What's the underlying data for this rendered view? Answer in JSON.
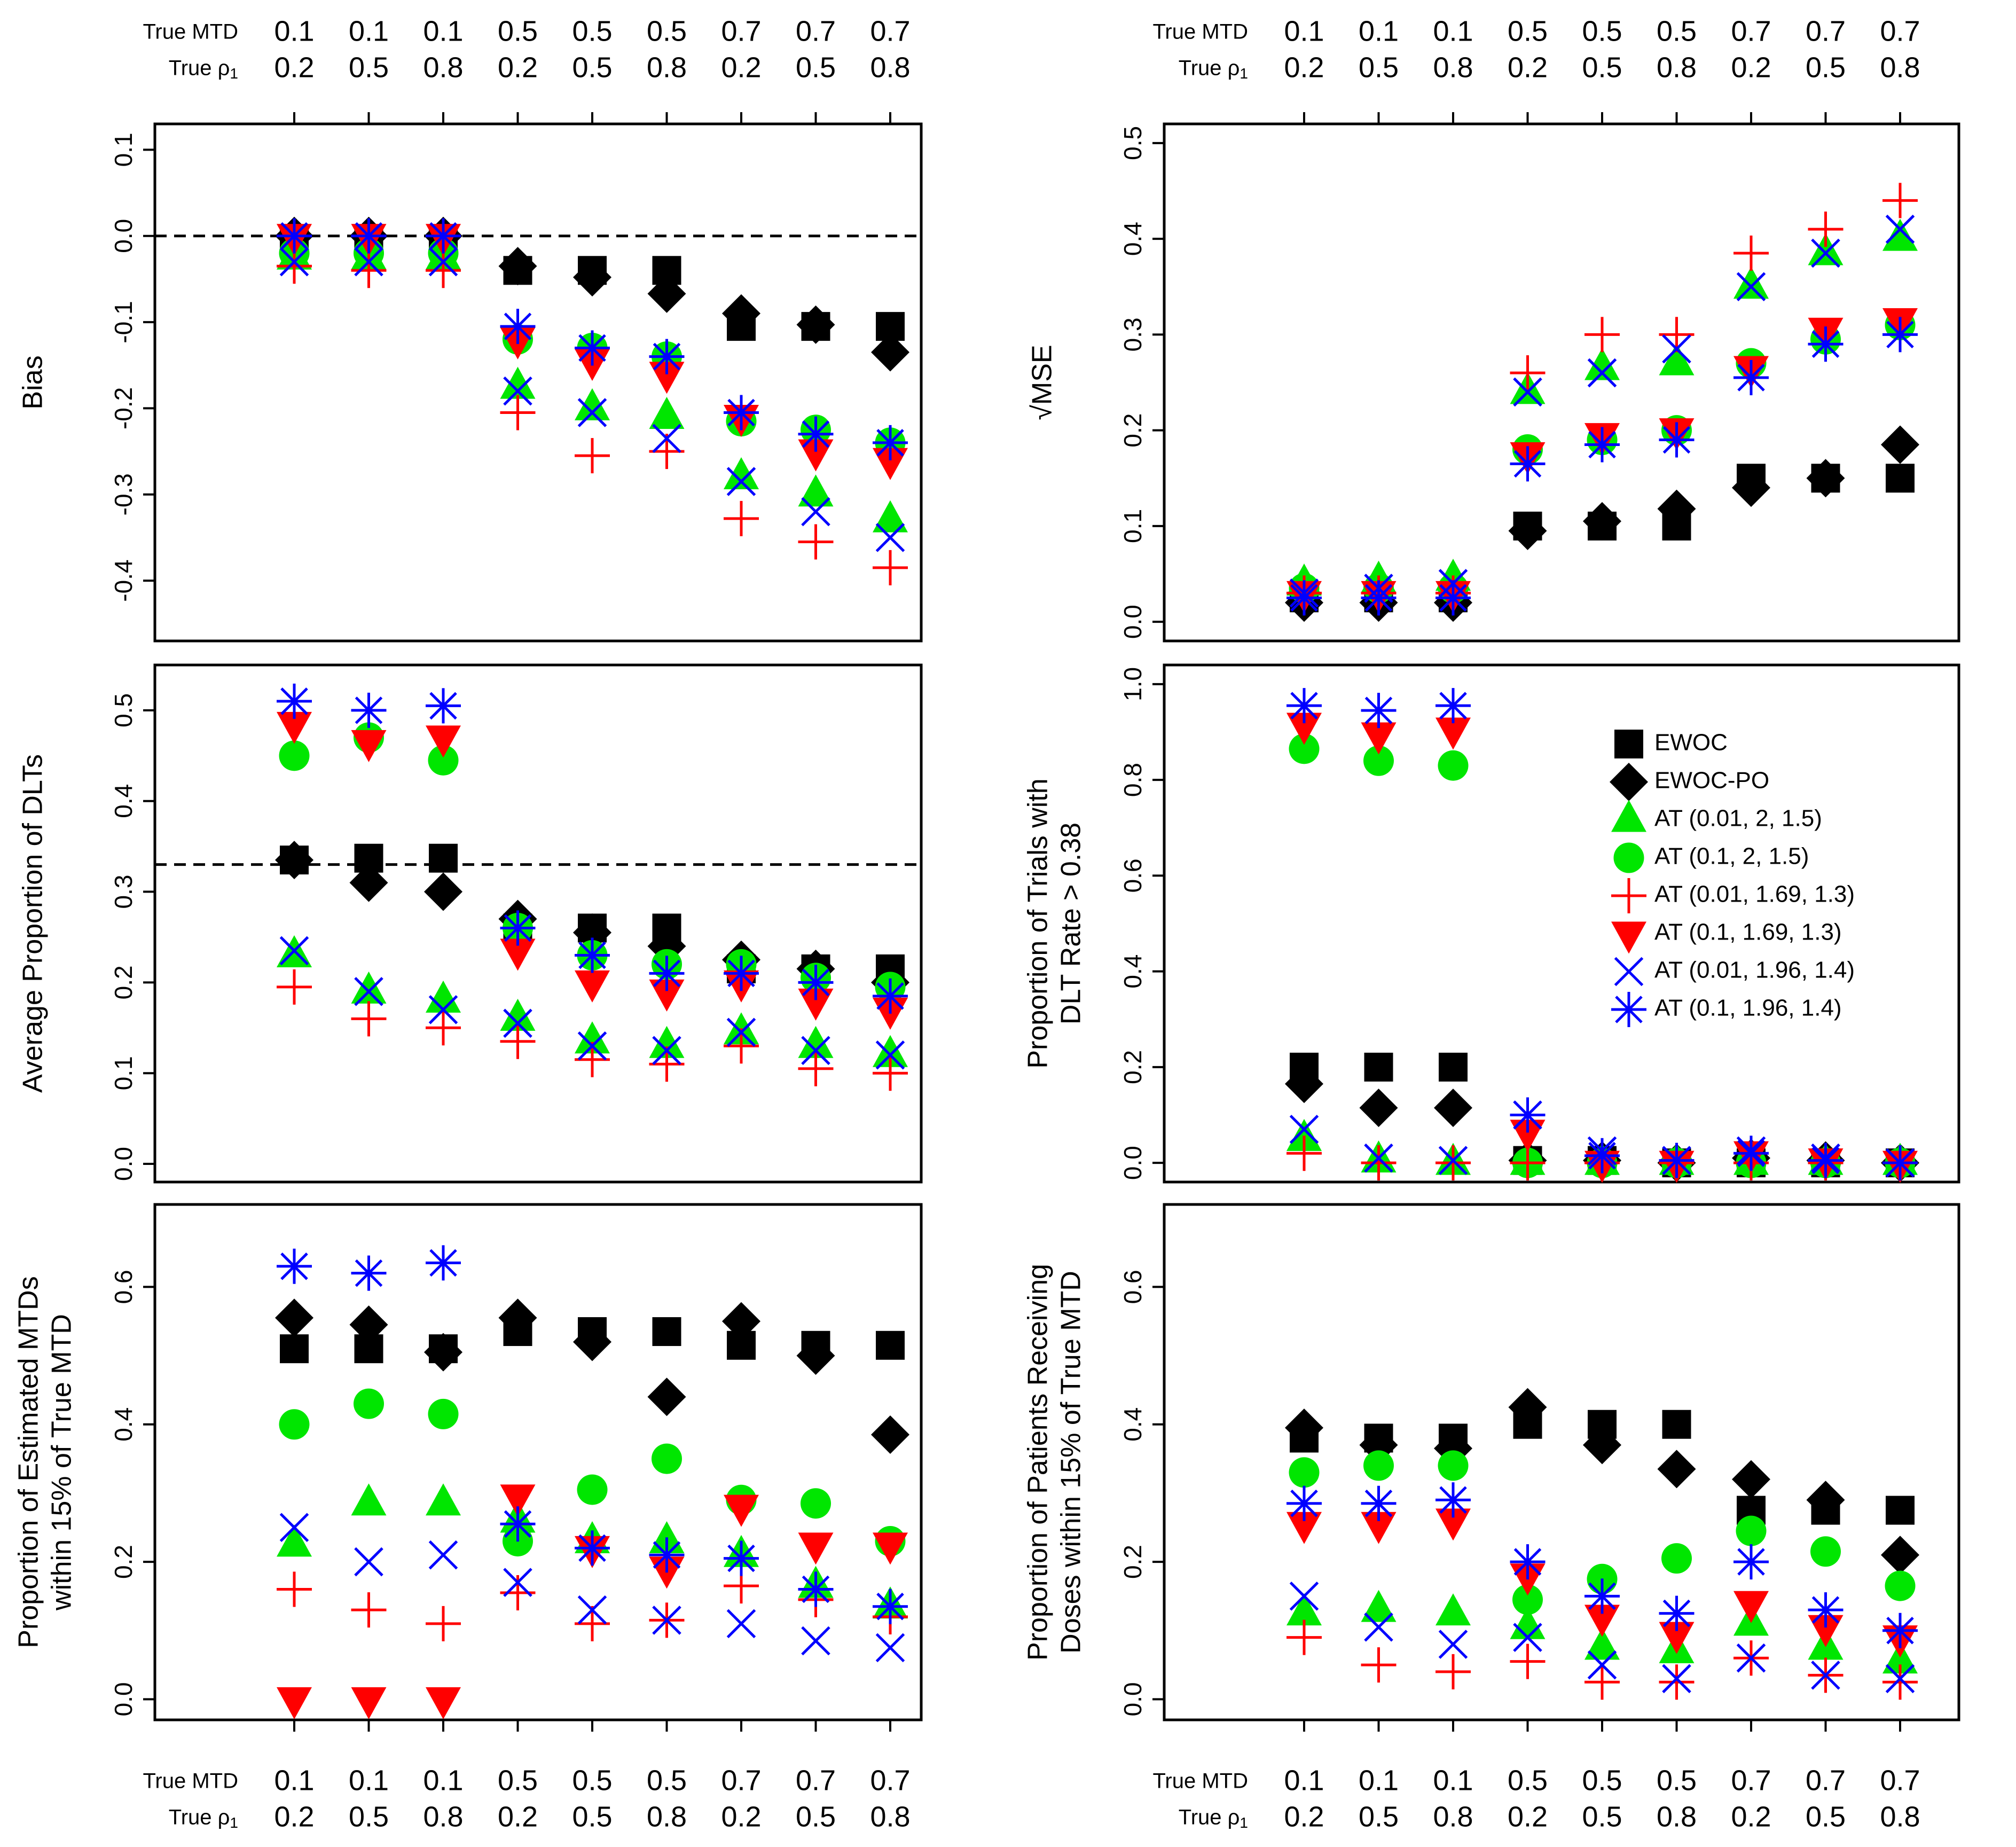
{
  "axis_header": {
    "mtd_label": "True MTD",
    "rho_label": "True ρ",
    "rho_subscript": "1",
    "mtd_values": [
      "0.1",
      "0.1",
      "0.1",
      "0.5",
      "0.5",
      "0.5",
      "0.7",
      "0.7",
      "0.7"
    ],
    "rho_values": [
      "0.2",
      "0.5",
      "0.8",
      "0.2",
      "0.5",
      "0.8",
      "0.2",
      "0.5",
      "0.8"
    ]
  },
  "legend": [
    {
      "key": "EWOC",
      "label": "EWOC",
      "marker": "square",
      "color": "#000000"
    },
    {
      "key": "EWOCPO",
      "label": "EWOC-PO",
      "marker": "diamond",
      "color": "#000000"
    },
    {
      "key": "AT1",
      "label": "AT (0.01, 2, 1.5)",
      "marker": "triangle-up",
      "color": "#00e600"
    },
    {
      "key": "AT2",
      "label": "AT (0.1, 2, 1.5)",
      "marker": "circle",
      "color": "#00e600"
    },
    {
      "key": "AT3",
      "label": "AT (0.01, 1.69, 1.3)",
      "marker": "plus",
      "color": "#ff0000"
    },
    {
      "key": "AT4",
      "label": "AT (0.1, 1.69, 1.3)",
      "marker": "triangle-down",
      "color": "#ff0000"
    },
    {
      "key": "AT5",
      "label": "AT (0.01, 1.96, 1.4)",
      "marker": "x",
      "color": "#0000ff"
    },
    {
      "key": "AT6",
      "label": "AT (0.1, 1.96, 1.4)",
      "marker": "asterisk",
      "color": "#0000ff"
    }
  ],
  "chart_data": [
    {
      "id": "bias",
      "type": "scatter",
      "title": "",
      "xlabel": "",
      "ylabel": [
        "Bias"
      ],
      "ylim": [
        -0.47,
        0.13
      ],
      "yticks": [
        "-0.4",
        "-0.3",
        "-0.2",
        "-0.1",
        "0.0",
        "0.1"
      ],
      "refline": 0.0,
      "categories": [
        "1",
        "2",
        "3",
        "4",
        "5",
        "6",
        "7",
        "8",
        "9"
      ],
      "series": [
        {
          "name": "EWOC",
          "values": [
            -0.005,
            -0.005,
            -0.005,
            -0.04,
            -0.04,
            -0.04,
            -0.105,
            -0.105,
            -0.105
          ]
        },
        {
          "name": "EWOC-PO",
          "values": [
            0.0,
            0.0,
            0.0,
            -0.035,
            -0.048,
            -0.067,
            -0.09,
            -0.103,
            -0.135
          ]
        },
        {
          "name": "AT (0.01, 2, 1.5)",
          "values": [
            -0.025,
            -0.025,
            -0.025,
            -0.175,
            -0.2,
            -0.21,
            -0.28,
            -0.3,
            -0.33
          ]
        },
        {
          "name": "AT (0.1, 2, 1.5)",
          "values": [
            -0.02,
            -0.02,
            -0.02,
            -0.12,
            -0.13,
            -0.14,
            -0.215,
            -0.225,
            -0.24
          ]
        },
        {
          "name": "AT (0.01, 1.69, 1.3)",
          "values": [
            -0.035,
            -0.04,
            -0.04,
            -0.205,
            -0.255,
            -0.25,
            -0.328,
            -0.355,
            -0.385
          ]
        },
        {
          "name": "AT (0.1, 1.69, 1.3)",
          "values": [
            0.0,
            0.0,
            0.0,
            -0.12,
            -0.145,
            -0.16,
            -0.21,
            -0.25,
            -0.26
          ]
        },
        {
          "name": "AT (0.01, 1.96, 1.4)",
          "values": [
            -0.03,
            -0.03,
            -0.03,
            -0.18,
            -0.205,
            -0.235,
            -0.285,
            -0.32,
            -0.35
          ]
        },
        {
          "name": "AT (0.1, 1.96, 1.4)",
          "values": [
            0.0,
            0.0,
            0.0,
            -0.105,
            -0.13,
            -0.14,
            -0.205,
            -0.23,
            -0.24
          ]
        }
      ]
    },
    {
      "id": "rmse",
      "type": "scatter",
      "title": "",
      "xlabel": "",
      "ylabel": [
        "√MSE"
      ],
      "ylim": [
        -0.02,
        0.52
      ],
      "yticks": [
        "0.0",
        "0.1",
        "0.2",
        "0.3",
        "0.4",
        "0.5"
      ],
      "categories": [
        "1",
        "2",
        "3",
        "4",
        "5",
        "6",
        "7",
        "8",
        "9"
      ],
      "series": [
        {
          "name": "EWOC",
          "values": [
            0.025,
            0.025,
            0.025,
            0.1,
            0.1,
            0.1,
            0.15,
            0.15,
            0.15
          ]
        },
        {
          "name": "EWOC-PO",
          "values": [
            0.02,
            0.02,
            0.02,
            0.095,
            0.105,
            0.118,
            0.14,
            0.15,
            0.185
          ]
        },
        {
          "name": "AT (0.01, 2, 1.5)",
          "values": [
            0.04,
            0.043,
            0.045,
            0.24,
            0.265,
            0.27,
            0.35,
            0.385,
            0.4
          ]
        },
        {
          "name": "AT (0.1, 2, 1.5)",
          "values": [
            0.035,
            0.035,
            0.035,
            0.18,
            0.19,
            0.2,
            0.27,
            0.295,
            0.31
          ]
        },
        {
          "name": "AT (0.01, 1.69, 1.3)",
          "values": [
            0.03,
            0.03,
            0.03,
            0.26,
            0.3,
            0.3,
            0.385,
            0.41,
            0.44
          ]
        },
        {
          "name": "AT (0.1, 1.69, 1.3)",
          "values": [
            0.03,
            0.03,
            0.03,
            0.175,
            0.195,
            0.2,
            0.265,
            0.305,
            0.315
          ]
        },
        {
          "name": "AT (0.01, 1.96, 1.4)",
          "values": [
            0.03,
            0.035,
            0.04,
            0.24,
            0.26,
            0.285,
            0.35,
            0.385,
            0.41
          ]
        },
        {
          "name": "AT (0.1, 1.96, 1.4)",
          "values": [
            0.025,
            0.025,
            0.025,
            0.165,
            0.185,
            0.19,
            0.255,
            0.29,
            0.3
          ]
        }
      ]
    },
    {
      "id": "avg-dlt",
      "type": "scatter",
      "title": "",
      "xlabel": "",
      "ylabel": [
        "Average Proportion of DLTs"
      ],
      "ylim": [
        -0.02,
        0.55
      ],
      "yticks": [
        "0.0",
        "0.1",
        "0.2",
        "0.3",
        "0.4",
        "0.5"
      ],
      "refline": 0.33,
      "categories": [
        "1",
        "2",
        "3",
        "4",
        "5",
        "6",
        "7",
        "8",
        "9"
      ],
      "series": [
        {
          "name": "EWOC",
          "values": [
            0.335,
            0.337,
            0.337,
            0.26,
            0.26,
            0.26,
            0.215,
            0.215,
            0.215
          ]
        },
        {
          "name": "EWOC-PO",
          "values": [
            0.335,
            0.31,
            0.3,
            0.27,
            0.255,
            0.24,
            0.225,
            0.215,
            0.2
          ]
        },
        {
          "name": "AT (0.01, 2, 1.5)",
          "values": [
            0.23,
            0.19,
            0.18,
            0.16,
            0.135,
            0.13,
            0.145,
            0.13,
            0.12
          ]
        },
        {
          "name": "AT (0.1, 2, 1.5)",
          "values": [
            0.45,
            0.47,
            0.445,
            0.26,
            0.23,
            0.22,
            0.22,
            0.205,
            0.195
          ]
        },
        {
          "name": "AT (0.01, 1.69, 1.3)",
          "values": [
            0.195,
            0.16,
            0.15,
            0.135,
            0.115,
            0.11,
            0.13,
            0.105,
            0.1
          ]
        },
        {
          "name": "AT (0.1, 1.69, 1.3)",
          "values": [
            0.485,
            0.465,
            0.47,
            0.235,
            0.2,
            0.19,
            0.2,
            0.18,
            0.17
          ]
        },
        {
          "name": "AT (0.01, 1.96, 1.4)",
          "values": [
            0.235,
            0.19,
            0.17,
            0.155,
            0.13,
            0.125,
            0.145,
            0.125,
            0.12
          ]
        },
        {
          "name": "AT (0.1, 1.96, 1.4)",
          "values": [
            0.51,
            0.5,
            0.505,
            0.26,
            0.23,
            0.21,
            0.21,
            0.2,
            0.185
          ]
        }
      ]
    },
    {
      "id": "trials-dlt",
      "type": "scatter",
      "title": "",
      "xlabel": "",
      "ylabel": [
        "Proportion of Trials with",
        "DLT Rate > 0.38"
      ],
      "ylim": [
        -0.04,
        1.04
      ],
      "yticks": [
        "0.0",
        "0.2",
        "0.4",
        "0.6",
        "0.8",
        "1.0"
      ],
      "categories": [
        "1",
        "2",
        "3",
        "4",
        "5",
        "6",
        "7",
        "8",
        "9"
      ],
      "series": [
        {
          "name": "EWOC",
          "values": [
            0.2,
            0.2,
            0.2,
            0.005,
            0.005,
            0.0,
            0.0,
            0.0,
            0.0
          ]
        },
        {
          "name": "EWOC-PO",
          "values": [
            0.165,
            0.115,
            0.115,
            0.005,
            0.005,
            0.0,
            0.01,
            0.005,
            0.0
          ]
        },
        {
          "name": "AT (0.01, 2, 1.5)",
          "values": [
            0.05,
            0.005,
            0.0,
            0.0,
            0.0,
            0.0,
            0.0,
            0.0,
            0.0
          ]
        },
        {
          "name": "AT (0.1, 2, 1.5)",
          "values": [
            0.865,
            0.84,
            0.83,
            0.0,
            0.0,
            0.0,
            0.0,
            0.0,
            0.0
          ]
        },
        {
          "name": "AT (0.01, 1.69, 1.3)",
          "values": [
            0.02,
            0.0,
            0.0,
            0.0,
            0.0,
            0.0,
            0.0,
            0.0,
            0.0
          ]
        },
        {
          "name": "AT (0.1, 1.69, 1.3)",
          "values": [
            0.915,
            0.895,
            0.905,
            0.065,
            0.0,
            0.0,
            0.02,
            0.005,
            0.0
          ]
        },
        {
          "name": "AT (0.01, 1.96, 1.4)",
          "values": [
            0.07,
            0.01,
            0.005,
            0.1,
            0.025,
            0.005,
            0.025,
            0.01,
            0.0
          ]
        },
        {
          "name": "AT (0.1, 1.96, 1.4)",
          "values": [
            0.955,
            0.945,
            0.955,
            0.1,
            0.015,
            0.005,
            0.02,
            0.005,
            0.0
          ]
        }
      ]
    },
    {
      "id": "est-mtd",
      "type": "scatter",
      "title": "",
      "xlabel": "",
      "ylabel": [
        "Proportion of Estimated MTDs",
        "within 15% of True MTD"
      ],
      "ylim": [
        -0.03,
        0.72
      ],
      "yticks": [
        "0.0",
        "0.2",
        "0.4",
        "0.6"
      ],
      "categories": [
        "1",
        "2",
        "3",
        "4",
        "5",
        "6",
        "7",
        "8",
        "9"
      ],
      "series": [
        {
          "name": "EWOC",
          "values": [
            0.51,
            0.51,
            0.51,
            0.535,
            0.535,
            0.535,
            0.515,
            0.515,
            0.515
          ]
        },
        {
          "name": "EWOC-PO",
          "values": [
            0.555,
            0.545,
            0.505,
            0.555,
            0.52,
            0.44,
            0.55,
            0.5,
            0.385
          ]
        },
        {
          "name": "AT (0.01, 2, 1.5)",
          "values": [
            0.225,
            0.285,
            0.285,
            0.26,
            0.23,
            0.23,
            0.21,
            0.165,
            0.135
          ]
        },
        {
          "name": "AT (0.1, 2, 1.5)",
          "values": [
            0.4,
            0.43,
            0.415,
            0.23,
            0.305,
            0.35,
            0.29,
            0.285,
            0.23
          ]
        },
        {
          "name": "AT (0.01, 1.69, 1.3)",
          "values": [
            0.16,
            0.13,
            0.11,
            0.155,
            0.11,
            0.115,
            0.165,
            0.145,
            0.12
          ]
        },
        {
          "name": "AT (0.1, 1.69, 1.3)",
          "values": [
            0.0,
            0.0,
            0.0,
            0.295,
            0.22,
            0.19,
            0.28,
            0.225,
            0.225
          ]
        },
        {
          "name": "AT (0.01, 1.96, 1.4)",
          "values": [
            0.25,
            0.2,
            0.21,
            0.17,
            0.13,
            0.115,
            0.11,
            0.085,
            0.075
          ]
        },
        {
          "name": "AT (0.1, 1.96, 1.4)",
          "values": [
            0.63,
            0.62,
            0.635,
            0.255,
            0.22,
            0.21,
            0.205,
            0.16,
            0.135
          ]
        }
      ]
    },
    {
      "id": "patients",
      "type": "scatter",
      "title": "",
      "xlabel": "",
      "ylabel": [
        "Proportion of Patients Receiving",
        "Doses within 15% of True MTD"
      ],
      "ylim": [
        -0.03,
        0.72
      ],
      "yticks": [
        "0.0",
        "0.2",
        "0.4",
        "0.6"
      ],
      "categories": [
        "1",
        "2",
        "3",
        "4",
        "5",
        "6",
        "7",
        "8",
        "9"
      ],
      "series": [
        {
          "name": "EWOC",
          "values": [
            0.38,
            0.38,
            0.38,
            0.4,
            0.4,
            0.4,
            0.275,
            0.275,
            0.275
          ]
        },
        {
          "name": "EWOC-PO",
          "values": [
            0.395,
            0.37,
            0.365,
            0.425,
            0.37,
            0.335,
            0.32,
            0.29,
            0.21
          ]
        },
        {
          "name": "AT (0.01, 2, 1.5)",
          "values": [
            0.125,
            0.13,
            0.125,
            0.105,
            0.075,
            0.07,
            0.11,
            0.075,
            0.055
          ]
        },
        {
          "name": "AT (0.1, 2, 1.5)",
          "values": [
            0.33,
            0.34,
            0.34,
            0.145,
            0.175,
            0.205,
            0.245,
            0.215,
            0.165
          ]
        },
        {
          "name": "AT (0.01, 1.69, 1.3)",
          "values": [
            0.09,
            0.05,
            0.04,
            0.055,
            0.025,
            0.025,
            0.06,
            0.035,
            0.025
          ]
        },
        {
          "name": "AT (0.1, 1.69, 1.3)",
          "values": [
            0.255,
            0.255,
            0.26,
            0.18,
            0.12,
            0.095,
            0.14,
            0.105,
            0.09
          ]
        },
        {
          "name": "AT (0.01, 1.96, 1.4)",
          "values": [
            0.15,
            0.105,
            0.08,
            0.09,
            0.05,
            0.03,
            0.06,
            0.035,
            0.03
          ]
        },
        {
          "name": "AT (0.1, 1.96, 1.4)",
          "values": [
            0.285,
            0.285,
            0.29,
            0.2,
            0.15,
            0.125,
            0.2,
            0.13,
            0.1
          ]
        }
      ]
    }
  ]
}
